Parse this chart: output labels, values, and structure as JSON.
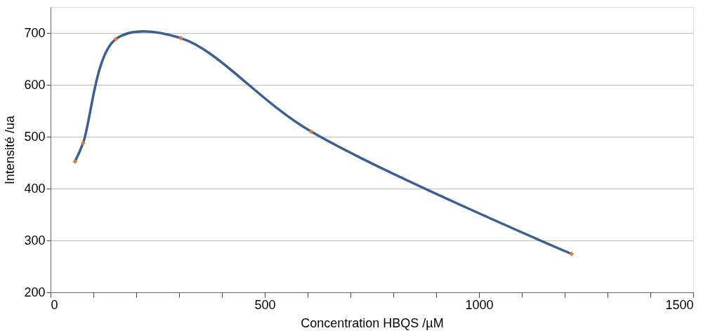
{
  "chart_data": {
    "type": "line",
    "xlabel": "Concentration HBQS /µM",
    "ylabel": "Intensité /ua",
    "x": [
      57,
      76,
      152,
      304,
      608,
      1216
    ],
    "series": [
      {
        "color": "#3b5f93",
        "colors": [
          "#e07b39",
          "#e07b39",
          "#e07b39",
          "#e07b39",
          "#e07b39",
          "#e07b39"
        ],
        "values": [
          452,
          488,
          688,
          690,
          510,
          274
        ]
      }
    ],
    "marker": "diamond",
    "grid": "y",
    "xlim": [
      0,
      1500
    ],
    "xticks": [
      0,
      {
        "value": 100,
        "label": null
      },
      {
        "value": 200,
        "label": null
      },
      {
        "value": 300,
        "label": null
      },
      {
        "value": 400,
        "label": null
      },
      500,
      {
        "value": 600,
        "label": null
      },
      {
        "value": 700,
        "label": null
      },
      {
        "value": 800,
        "label": null
      },
      {
        "value": 900,
        "label": null
      },
      1000,
      {
        "value": 1100,
        "label": null
      },
      {
        "value": 1200,
        "label": null
      },
      {
        "value": 1300,
        "label": null
      },
      {
        "value": 1400,
        "label": null
      },
      1500
    ],
    "ylim": [
      200,
      750
    ],
    "yticks": [
      200,
      300,
      400,
      500,
      600,
      700
    ]
  }
}
